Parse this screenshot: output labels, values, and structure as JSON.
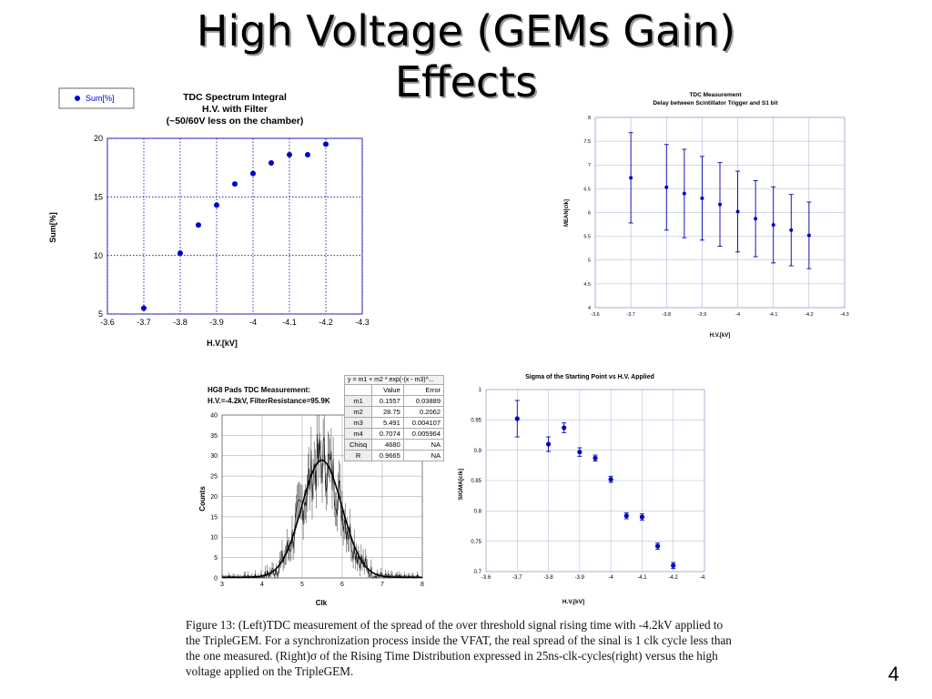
{
  "title": {
    "line1": "High Voltage (GEMs Gain)",
    "line2": "Effects"
  },
  "page_number": "4",
  "caption": "Figure 13: (Left)TDC measurement of the spread of the over threshold signal rising time with -4.2kV applied to the TripleGEM. For a synchronization process inside the VFAT, the real spread of the sinal is 1 clk cycle less than the one measured. (Right)σ of the Rising Time Distribution expressed in 25ns-clk-cycles(right) versus the high voltage applied on the TripleGEM.",
  "fit_table": {
    "formula": "y = m1 + m2 * exp(-(x - m3)^...",
    "headers": [
      "",
      "Value",
      "Error"
    ],
    "rows": [
      [
        "m1",
        "0.1557",
        "0.03889"
      ],
      [
        "m2",
        "28.75",
        "0.2062"
      ],
      [
        "m3",
        "5.491",
        "0.004107"
      ],
      [
        "m4",
        "0.7074",
        "0.005964"
      ],
      [
        "Chisq",
        "4680",
        "NA"
      ],
      [
        "R",
        "0.9665",
        "NA"
      ]
    ]
  },
  "colors": {
    "marker": "#0000cc",
    "grid": "#0000aa",
    "line": "#000000"
  },
  "chart_data": [
    {
      "id": "tdc-integral",
      "type": "scatter",
      "title": "TDC Spectrum Integral",
      "subtitle": "H.V. with Filter",
      "subtitle2": "(~50/60V less on the chamber)",
      "xlabel": "H.V.[kV]",
      "ylabel": "Sum[%]",
      "legend": "Sum[%]",
      "legend_position": "top-left",
      "xlim": [
        -3.6,
        -4.3
      ],
      "ylim": [
        5,
        20
      ],
      "xticks": [
        "-3.6",
        "-3.7",
        "-3.8",
        "-3.9",
        "-4",
        "-4.1",
        "-4.2",
        "-4.3"
      ],
      "yticks": [
        "5",
        "10",
        "15",
        "20"
      ],
      "grid": "dotted",
      "series": [
        {
          "name": "Sum[%]",
          "x": [
            -3.7,
            -3.8,
            -3.85,
            -3.9,
            -3.95,
            -4.0,
            -4.05,
            -4.1,
            -4.15,
            -4.2
          ],
          "y": [
            5.5,
            10.2,
            12.6,
            14.3,
            16.1,
            17.0,
            17.9,
            18.6,
            18.6,
            19.5
          ]
        }
      ]
    },
    {
      "id": "tdc-measurement",
      "type": "scatter",
      "title": "TDC Measurement",
      "subtitle": "Delay between Scintillator Trigger and S1 bit",
      "xlabel": "H.V.[kV]",
      "ylabel": "MEAN[clk]",
      "xlim": [
        -3.6,
        -4.3
      ],
      "ylim": [
        4,
        8
      ],
      "xticks": [
        "-3.6",
        "-3.7",
        "-3.8",
        "-3.9",
        "-4",
        "-4.1",
        "-4.2",
        "-4.3"
      ],
      "yticks": [
        "4",
        "4.5",
        "5",
        "5.5",
        "6",
        "6.5",
        "7",
        "7.5",
        "8"
      ],
      "grid": "solid",
      "series": [
        {
          "x": [
            -3.7,
            -3.8,
            -3.85,
            -3.9,
            -3.95,
            -4.0,
            -4.05,
            -4.1,
            -4.15,
            -4.2
          ],
          "y": [
            6.73,
            6.53,
            6.4,
            6.3,
            6.17,
            6.02,
            5.87,
            5.74,
            5.63,
            5.52
          ],
          "err": [
            0.95,
            0.9,
            0.93,
            0.88,
            0.88,
            0.85,
            0.8,
            0.8,
            0.75,
            0.7
          ]
        }
      ]
    },
    {
      "id": "hg8-tdc",
      "type": "line",
      "title": "HG8 Pads TDC Measurement:",
      "subtitle": "H.V.=-4.2kV, FilterResistance=95.9K",
      "xlabel": "Clk",
      "ylabel": "Counts",
      "xlim": [
        3,
        8
      ],
      "ylim": [
        0,
        40
      ],
      "xticks": [
        "3",
        "4",
        "5",
        "6",
        "7",
        "8"
      ],
      "yticks": [
        "0",
        "5",
        "10",
        "15",
        "20",
        "25",
        "30",
        "35",
        "40"
      ],
      "grid": "solid",
      "fit": {
        "m1": 0.1557,
        "m2": 28.75,
        "m3": 5.491,
        "m4": 0.7074
      }
    },
    {
      "id": "sigma-start",
      "type": "scatter",
      "title": "Sigma of the Starting Point vs H.V. Applied",
      "xlabel": "H.V.[kV]",
      "ylabel": "SIGMA[clk]",
      "xlim": [
        -3.6,
        -4.3
      ],
      "ylim": [
        0.7,
        1
      ],
      "xticks": [
        "-3.6",
        "-3.7",
        "-3.8",
        "-3.9",
        "-4",
        "-4.1",
        "-4.2",
        "-4.3"
      ],
      "yticks": [
        "0.7",
        "0.75",
        "0.8",
        "0.85",
        "0.9",
        "0.95",
        "1"
      ],
      "grid": "solid",
      "series": [
        {
          "x": [
            -3.7,
            -3.8,
            -3.85,
            -3.9,
            -3.95,
            -4.0,
            -4.05,
            -4.1,
            -4.15,
            -4.2
          ],
          "y": [
            0.952,
            0.91,
            0.937,
            0.897,
            0.887,
            0.852,
            0.792,
            0.79,
            0.742,
            0.71
          ],
          "err": [
            0.03,
            0.012,
            0.008,
            0.007,
            0.005,
            0.005,
            0.005,
            0.005,
            0.005,
            0.005
          ]
        }
      ]
    }
  ]
}
